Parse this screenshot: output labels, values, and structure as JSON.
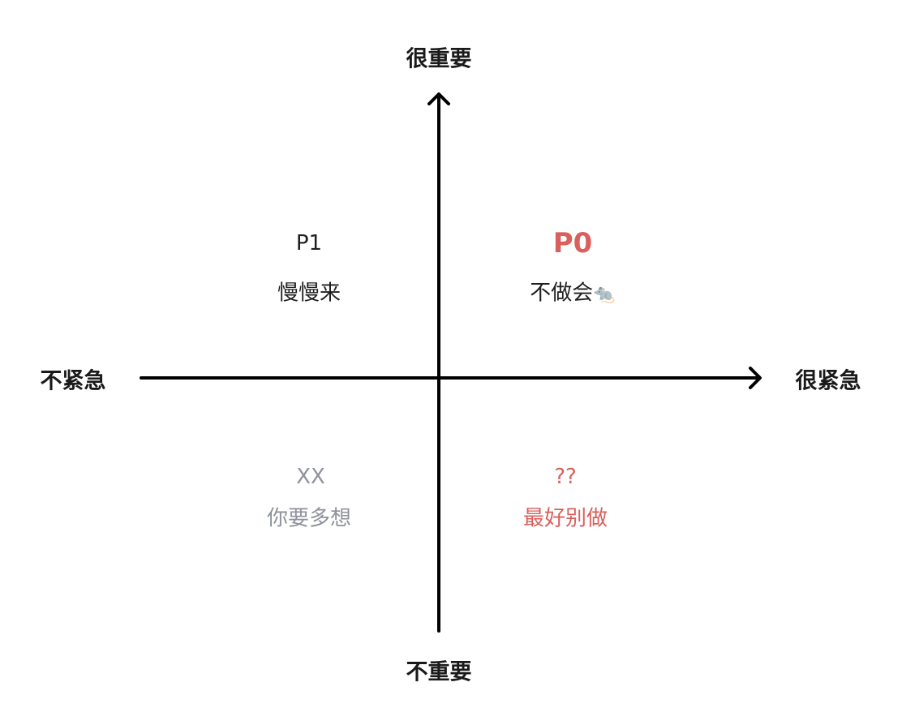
{
  "axes": {
    "top": "很重要",
    "bottom": "不重要",
    "left": "不紧急",
    "right": "很紧急"
  },
  "quadrants": {
    "top_left": {
      "title": "P1",
      "subtitle": "慢慢来",
      "color": "#1f1f1f"
    },
    "top_right": {
      "title": "P0",
      "subtitle": "不做会",
      "icon": "mouse-icon",
      "emoji": "🐀",
      "color": "#d9605c",
      "subtitle_color": "#1f1f1f"
    },
    "bottom_left": {
      "title": "XX",
      "subtitle": "你要多想",
      "color": "#8f929c"
    },
    "bottom_right": {
      "title": "??",
      "subtitle": "最好别做",
      "color": "#d9605c"
    }
  }
}
